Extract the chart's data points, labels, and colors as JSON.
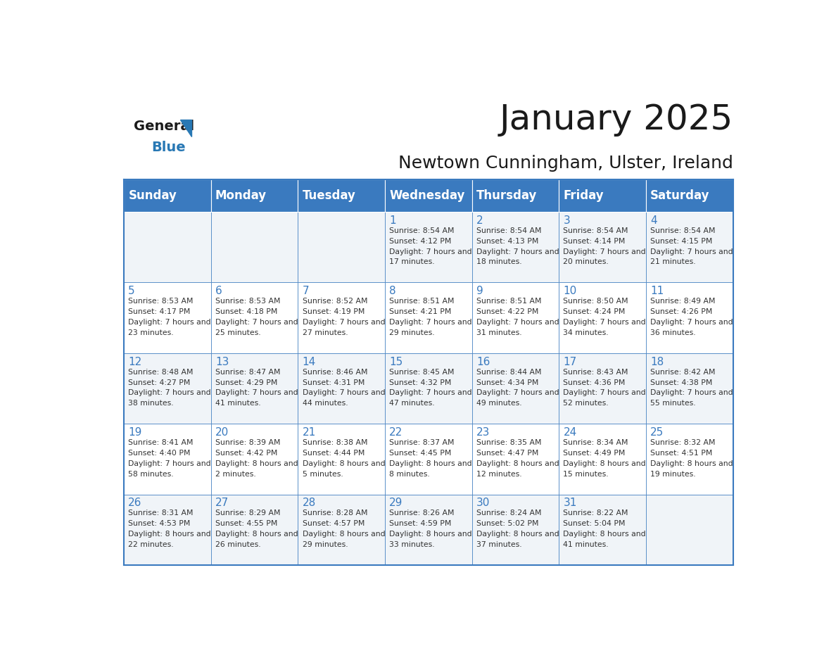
{
  "title": "January 2025",
  "subtitle": "Newtown Cunningham, Ulster, Ireland",
  "days_of_week": [
    "Sunday",
    "Monday",
    "Tuesday",
    "Wednesday",
    "Thursday",
    "Friday",
    "Saturday"
  ],
  "header_bg_color": "#3a7abf",
  "header_text_color": "#ffffff",
  "cell_bg_even_color": "#f0f4f8",
  "cell_bg_odd_color": "#ffffff",
  "grid_line_color": "#3a7abf",
  "title_color": "#1a1a1a",
  "subtitle_color": "#1a1a1a",
  "day_number_color": "#3a7abf",
  "cell_text_color": "#333333",
  "logo_general_color": "#1a1a1a",
  "logo_blue_color": "#2878b4",
  "calendar_data": [
    [
      {
        "day": null,
        "sunrise": null,
        "sunset": null,
        "daylight": null
      },
      {
        "day": null,
        "sunrise": null,
        "sunset": null,
        "daylight": null
      },
      {
        "day": null,
        "sunrise": null,
        "sunset": null,
        "daylight": null
      },
      {
        "day": 1,
        "sunrise": "8:54 AM",
        "sunset": "4:12 PM",
        "daylight": "7 hours and 17 minutes."
      },
      {
        "day": 2,
        "sunrise": "8:54 AM",
        "sunset": "4:13 PM",
        "daylight": "7 hours and 18 minutes."
      },
      {
        "day": 3,
        "sunrise": "8:54 AM",
        "sunset": "4:14 PM",
        "daylight": "7 hours and 20 minutes."
      },
      {
        "day": 4,
        "sunrise": "8:54 AM",
        "sunset": "4:15 PM",
        "daylight": "7 hours and 21 minutes."
      }
    ],
    [
      {
        "day": 5,
        "sunrise": "8:53 AM",
        "sunset": "4:17 PM",
        "daylight": "7 hours and 23 minutes."
      },
      {
        "day": 6,
        "sunrise": "8:53 AM",
        "sunset": "4:18 PM",
        "daylight": "7 hours and 25 minutes."
      },
      {
        "day": 7,
        "sunrise": "8:52 AM",
        "sunset": "4:19 PM",
        "daylight": "7 hours and 27 minutes."
      },
      {
        "day": 8,
        "sunrise": "8:51 AM",
        "sunset": "4:21 PM",
        "daylight": "7 hours and 29 minutes."
      },
      {
        "day": 9,
        "sunrise": "8:51 AM",
        "sunset": "4:22 PM",
        "daylight": "7 hours and 31 minutes."
      },
      {
        "day": 10,
        "sunrise": "8:50 AM",
        "sunset": "4:24 PM",
        "daylight": "7 hours and 34 minutes."
      },
      {
        "day": 11,
        "sunrise": "8:49 AM",
        "sunset": "4:26 PM",
        "daylight": "7 hours and 36 minutes."
      }
    ],
    [
      {
        "day": 12,
        "sunrise": "8:48 AM",
        "sunset": "4:27 PM",
        "daylight": "7 hours and 38 minutes."
      },
      {
        "day": 13,
        "sunrise": "8:47 AM",
        "sunset": "4:29 PM",
        "daylight": "7 hours and 41 minutes."
      },
      {
        "day": 14,
        "sunrise": "8:46 AM",
        "sunset": "4:31 PM",
        "daylight": "7 hours and 44 minutes."
      },
      {
        "day": 15,
        "sunrise": "8:45 AM",
        "sunset": "4:32 PM",
        "daylight": "7 hours and 47 minutes."
      },
      {
        "day": 16,
        "sunrise": "8:44 AM",
        "sunset": "4:34 PM",
        "daylight": "7 hours and 49 minutes."
      },
      {
        "day": 17,
        "sunrise": "8:43 AM",
        "sunset": "4:36 PM",
        "daylight": "7 hours and 52 minutes."
      },
      {
        "day": 18,
        "sunrise": "8:42 AM",
        "sunset": "4:38 PM",
        "daylight": "7 hours and 55 minutes."
      }
    ],
    [
      {
        "day": 19,
        "sunrise": "8:41 AM",
        "sunset": "4:40 PM",
        "daylight": "7 hours and 58 minutes."
      },
      {
        "day": 20,
        "sunrise": "8:39 AM",
        "sunset": "4:42 PM",
        "daylight": "8 hours and 2 minutes."
      },
      {
        "day": 21,
        "sunrise": "8:38 AM",
        "sunset": "4:44 PM",
        "daylight": "8 hours and 5 minutes."
      },
      {
        "day": 22,
        "sunrise": "8:37 AM",
        "sunset": "4:45 PM",
        "daylight": "8 hours and 8 minutes."
      },
      {
        "day": 23,
        "sunrise": "8:35 AM",
        "sunset": "4:47 PM",
        "daylight": "8 hours and 12 minutes."
      },
      {
        "day": 24,
        "sunrise": "8:34 AM",
        "sunset": "4:49 PM",
        "daylight": "8 hours and 15 minutes."
      },
      {
        "day": 25,
        "sunrise": "8:32 AM",
        "sunset": "4:51 PM",
        "daylight": "8 hours and 19 minutes."
      }
    ],
    [
      {
        "day": 26,
        "sunrise": "8:31 AM",
        "sunset": "4:53 PM",
        "daylight": "8 hours and 22 minutes."
      },
      {
        "day": 27,
        "sunrise": "8:29 AM",
        "sunset": "4:55 PM",
        "daylight": "8 hours and 26 minutes."
      },
      {
        "day": 28,
        "sunrise": "8:28 AM",
        "sunset": "4:57 PM",
        "daylight": "8 hours and 29 minutes."
      },
      {
        "day": 29,
        "sunrise": "8:26 AM",
        "sunset": "4:59 PM",
        "daylight": "8 hours and 33 minutes."
      },
      {
        "day": 30,
        "sunrise": "8:24 AM",
        "sunset": "5:02 PM",
        "daylight": "8 hours and 37 minutes."
      },
      {
        "day": 31,
        "sunrise": "8:22 AM",
        "sunset": "5:04 PM",
        "daylight": "8 hours and 41 minutes."
      },
      {
        "day": null,
        "sunrise": null,
        "sunset": null,
        "daylight": null
      }
    ]
  ]
}
